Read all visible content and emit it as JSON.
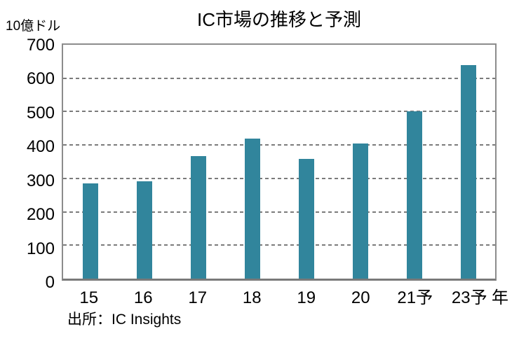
{
  "source": "出所：IC Insights",
  "colors": {
    "bar": "#31859C",
    "frame": "#8C8C8C",
    "axis": "#7A7A7A",
    "grid": "#7B7B7B",
    "text": "#000000",
    "background": "#FFFFFF"
  },
  "chart_data": {
    "type": "bar",
    "title": "IC市場の推移と予測",
    "ylabel": "10億ドル",
    "xlabel": "年",
    "categories": [
      "15",
      "16",
      "17",
      "18",
      "19",
      "20",
      "21予",
      "23予"
    ],
    "values": [
      285,
      292,
      367,
      420,
      358,
      404,
      500,
      640
    ],
    "ylim": [
      0,
      700
    ],
    "yticks": [
      0,
      100,
      200,
      300,
      400,
      500,
      600,
      700
    ],
    "grid": "horizontal-dashed",
    "legend": "none"
  }
}
